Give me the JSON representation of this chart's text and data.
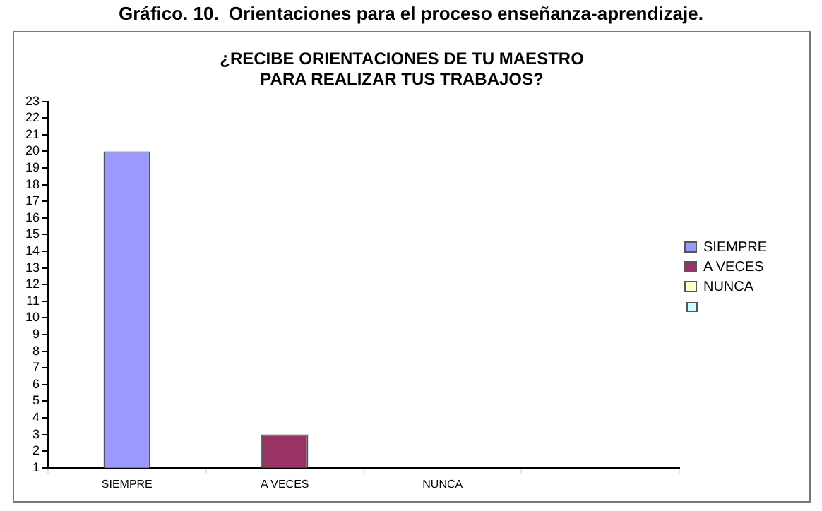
{
  "chart_data": {
    "type": "bar",
    "title": "Gráfico. 10.  Orientaciones para el proceso enseñanza-aprendizaje.",
    "subtitle": "¿RECIBE ORIENTACIONES DE TU MAESTRO PARA REALIZAR TUS TRABAJOS?",
    "categories": [
      "SIEMPRE",
      "A VECES",
      "NUNCA",
      null
    ],
    "series": [
      {
        "name": "SIEMPRE",
        "color": "#9999ff",
        "values": [
          20,
          null,
          null,
          null
        ]
      },
      {
        "name": "A VECES",
        "color": "#993366",
        "values": [
          null,
          3,
          null,
          null
        ]
      },
      {
        "name": "NUNCA",
        "color": "#ffffcc",
        "values": [
          null,
          null,
          null,
          null
        ]
      },
      {
        "color": "#ccffff",
        "values": [
          null,
          null,
          null,
          null
        ]
      }
    ],
    "ylim": [
      1,
      23
    ],
    "yticks": [
      1,
      2,
      3,
      4,
      5,
      6,
      7,
      8,
      9,
      10,
      11,
      12,
      13,
      14,
      15,
      16,
      17,
      18,
      19,
      20,
      21,
      22,
      23
    ],
    "grid": false,
    "legend": "right"
  }
}
